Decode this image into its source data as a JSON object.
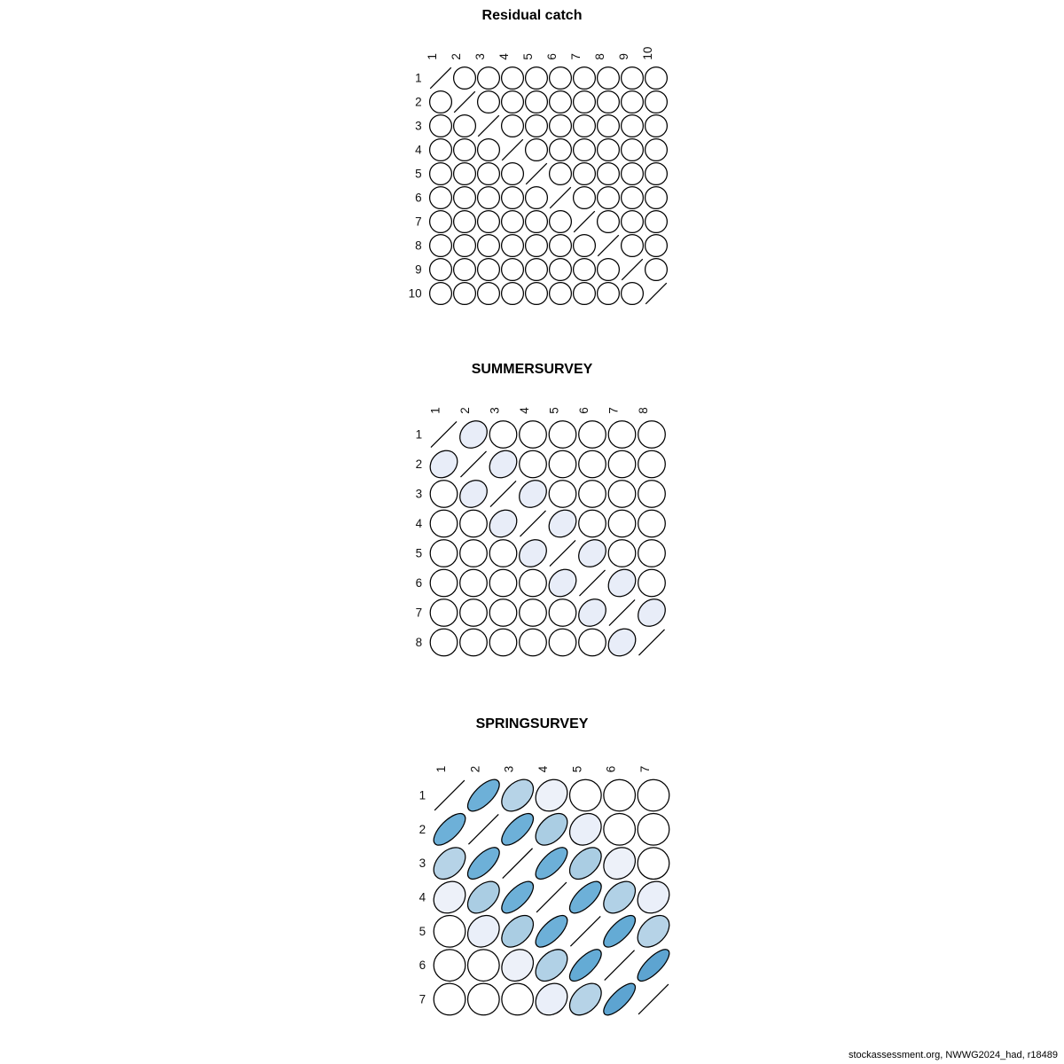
{
  "page": {
    "background": "#FFFFFF"
  },
  "footer": {
    "text": "stockassessment.org, NWWG2024_had, r18489"
  },
  "color_scale": {
    "anchors": [
      [
        0,
        "#FFFFFF"
      ],
      [
        0.2,
        "#E8EDF8"
      ],
      [
        0.45,
        "#AACDE3"
      ],
      [
        0.7,
        "#68AED7"
      ],
      [
        1,
        "#2F7EB8"
      ]
    ],
    "stroke": "#000000",
    "label_color": "#1A1A1A"
  },
  "chart_data": [
    {
      "type": "heatmap",
      "style": "correlation-ellipse-matrix",
      "title": "Residual catch",
      "labels": [
        "1",
        "2",
        "3",
        "4",
        "5",
        "6",
        "7",
        "8",
        "9",
        "10"
      ],
      "matrix": [
        [
          1,
          0,
          0,
          0,
          0,
          0,
          0,
          0,
          0,
          0
        ],
        [
          0,
          1,
          0,
          0,
          0,
          0,
          0,
          0,
          0,
          0
        ],
        [
          0,
          0,
          1,
          0,
          0,
          0,
          0,
          0,
          0,
          0
        ],
        [
          0,
          0,
          0,
          1,
          0,
          0,
          0,
          0,
          0,
          0
        ],
        [
          0,
          0,
          0,
          0,
          1,
          0,
          0,
          0,
          0,
          0
        ],
        [
          0,
          0,
          0,
          0,
          0,
          1,
          0,
          0,
          0,
          0
        ],
        [
          0,
          0,
          0,
          0,
          0,
          0,
          1,
          0,
          0,
          0
        ],
        [
          0,
          0,
          0,
          0,
          0,
          0,
          0,
          1,
          0,
          0
        ],
        [
          0,
          0,
          0,
          0,
          0,
          0,
          0,
          0,
          1,
          0
        ],
        [
          0,
          0,
          0,
          0,
          0,
          0,
          0,
          0,
          0,
          1
        ]
      ],
      "layout": {
        "col_start": 497,
        "col_step": 27,
        "row_start": 88,
        "row_step": 27,
        "radius": 12.4
      }
    },
    {
      "type": "heatmap",
      "style": "correlation-ellipse-matrix",
      "title": "SUMMERSURVEY",
      "labels": [
        "1",
        "2",
        "3",
        "4",
        "5",
        "6",
        "7",
        "8"
      ],
      "matrix": [
        [
          1,
          0.2,
          0,
          0,
          0,
          0,
          0,
          0
        ],
        [
          0.2,
          1,
          0.2,
          0,
          0,
          0,
          0,
          0
        ],
        [
          0,
          0.2,
          1,
          0.2,
          0,
          0,
          0,
          0
        ],
        [
          0,
          0,
          0.2,
          1,
          0.2,
          0,
          0,
          0
        ],
        [
          0,
          0,
          0,
          0.2,
          1,
          0.2,
          0,
          0
        ],
        [
          0,
          0,
          0,
          0,
          0.2,
          1,
          0.2,
          0
        ],
        [
          0,
          0,
          0,
          0,
          0,
          0.2,
          1,
          0.2
        ],
        [
          0,
          0,
          0,
          0,
          0,
          0,
          0.2,
          1
        ]
      ],
      "layout": {
        "col_start": 500.5,
        "col_step": 33.5,
        "row_start": 490,
        "row_step": 33.5,
        "radius": 15.3
      }
    },
    {
      "type": "heatmap",
      "style": "correlation-ellipse-matrix",
      "title": "SPRINGSURVEY",
      "labels": [
        "1",
        "2",
        "3",
        "4",
        "5",
        "6",
        "7"
      ],
      "matrix": [
        [
          1,
          0.68,
          0.4,
          0.16,
          0,
          0,
          0
        ],
        [
          0.68,
          1,
          0.68,
          0.45,
          0.18,
          0,
          0
        ],
        [
          0.4,
          0.68,
          1,
          0.68,
          0.45,
          0.16,
          0
        ],
        [
          0.16,
          0.45,
          0.68,
          1,
          0.68,
          0.42,
          0.18
        ],
        [
          0,
          0.18,
          0.45,
          0.68,
          1,
          0.72,
          0.4
        ],
        [
          0,
          0,
          0.16,
          0.42,
          0.72,
          1,
          0.76
        ],
        [
          0,
          0,
          0,
          0.18,
          0.4,
          0.76,
          1
        ]
      ],
      "layout": {
        "col_start": 507,
        "col_step": 38.33,
        "row_start": 897,
        "row_step": 38.33,
        "radius": 17.8
      }
    }
  ]
}
